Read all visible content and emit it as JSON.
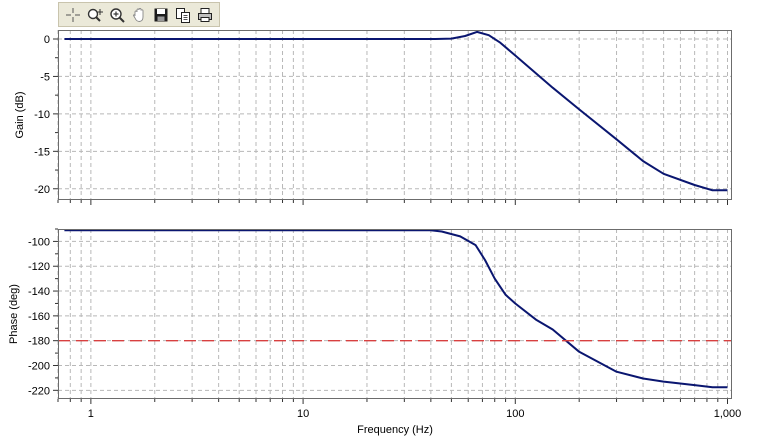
{
  "toolbar": {
    "buttons": [
      {
        "name": "pointer-tool-button",
        "icon": "crosshair-icon"
      },
      {
        "name": "zoom-axis-button",
        "icon": "zoom-axis-icon"
      },
      {
        "name": "zoom-button",
        "icon": "magnifier-icon"
      },
      {
        "name": "pan-button",
        "icon": "hand-icon"
      },
      {
        "name": "save-button",
        "icon": "floppy-disk-icon"
      },
      {
        "name": "copy-button",
        "icon": "copy-icon"
      },
      {
        "name": "print-button",
        "icon": "printer-icon"
      }
    ]
  },
  "chart_data": [
    {
      "type": "line",
      "ylabel": "Gain (dB)",
      "xscale": "log",
      "xlim": [
        0.7,
        1050
      ],
      "ylim": [
        -21.5,
        1.2
      ],
      "yticks": [
        0,
        -5,
        -10,
        -15,
        -20
      ],
      "ytick_labels": [
        "0",
        "-5",
        "-10",
        "-15",
        "-20"
      ],
      "grid": true,
      "series": [
        {
          "color": "#0a1670",
          "x": [
            0.75,
            42,
            50,
            58,
            66,
            75,
            85,
            100,
            150,
            200,
            300,
            400,
            500,
            700,
            850,
            1000
          ],
          "y": [
            0,
            0,
            0.05,
            0.4,
            0.95,
            0.5,
            -0.5,
            -2.2,
            -6.5,
            -9.4,
            -13.4,
            -16.3,
            -18.0,
            -19.5,
            -20.2,
            -20.2
          ]
        }
      ]
    },
    {
      "type": "line",
      "ylabel": "Phase (deg)",
      "xlabel": "Frequency (Hz)",
      "xscale": "log",
      "xlim": [
        0.7,
        1050
      ],
      "ylim": [
        -227,
        -90
      ],
      "yticks": [
        -100,
        -120,
        -140,
        -160,
        -180,
        -200,
        -220
      ],
      "ytick_labels": [
        "-100",
        "-120",
        "-140",
        "-160",
        "-180",
        "-200",
        "-220"
      ],
      "xticks": [
        1,
        10,
        100,
        1000
      ],
      "xtick_labels": [
        "1",
        "10",
        "100",
        "1,000"
      ],
      "grid": true,
      "series": [
        {
          "color": "#0a1670",
          "x": [
            0.75,
            40,
            45,
            55,
            65,
            72,
            80,
            90,
            100,
            125,
            150,
            200,
            300,
            400,
            500,
            700,
            850,
            1000
          ],
          "y": [
            -91,
            -91,
            -92,
            -96,
            -103,
            -115,
            -130,
            -143,
            -150,
            -163,
            -171,
            -189,
            -205,
            -210.5,
            -213,
            -215.8,
            -217.5,
            -217.5
          ]
        },
        {
          "color": "#d84040",
          "dashed": true,
          "x": [
            0.7,
            1050
          ],
          "y": [
            -180,
            -180
          ]
        }
      ]
    }
  ]
}
